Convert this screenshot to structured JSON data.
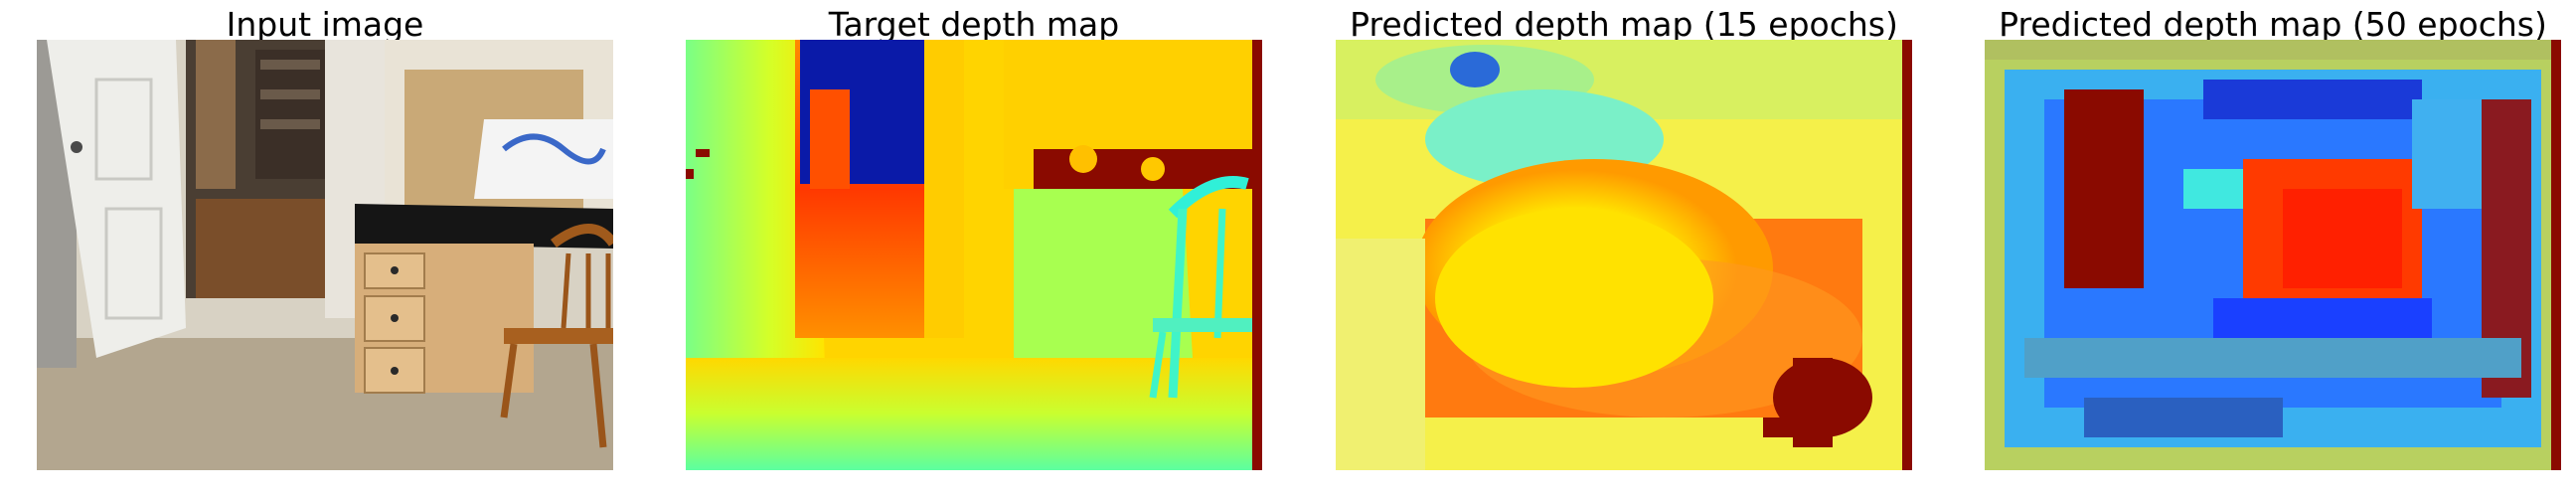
{
  "panels": [
    {
      "title": "Input image"
    },
    {
      "title": "Target depth map"
    },
    {
      "title": "Predicted depth map (15 epochs)"
    },
    {
      "title": "Predicted depth map (50 epochs)"
    }
  ],
  "colors": {
    "jet_dark_red": "#800000",
    "jet_red": "#ff2000",
    "jet_orange": "#ff9a00",
    "jet_yellow": "#ffef00",
    "jet_green": "#8cff6a",
    "jet_cyan": "#2bffd0",
    "jet_blue": "#0050ff",
    "jet_dark_blue": "#00109b"
  }
}
